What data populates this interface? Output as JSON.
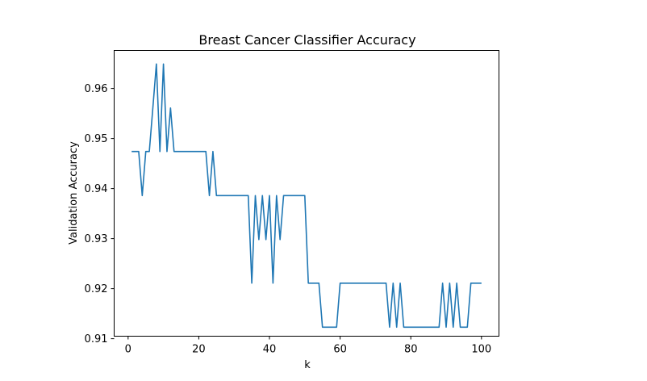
{
  "chart_data": {
    "type": "line",
    "title": "Breast Cancer Classifier Accuracy",
    "xlabel": "k",
    "ylabel": "Validation Accuracy",
    "xlim": [
      -3.95,
      104.95
    ],
    "ylim": [
      0.9105,
      0.9676
    ],
    "xticks": [
      0,
      20,
      40,
      60,
      80,
      100
    ],
    "xtick_labels": [
      "0",
      "20",
      "40",
      "60",
      "80",
      "100"
    ],
    "yticks": [
      0.91,
      0.92,
      0.93,
      0.94,
      0.95,
      0.96
    ],
    "ytick_labels": [
      "0.91",
      "0.92",
      "0.93",
      "0.94",
      "0.95",
      "0.96"
    ],
    "grid": false,
    "colors": {
      "series": "#1f77b4"
    },
    "series": [
      {
        "x": [
          1,
          2,
          3,
          4,
          5,
          6,
          7,
          8,
          9,
          10,
          11,
          12,
          13,
          14,
          15,
          16,
          17,
          18,
          19,
          20,
          21,
          22,
          23,
          24,
          25,
          26,
          27,
          28,
          29,
          30,
          31,
          32,
          33,
          34,
          35,
          36,
          37,
          38,
          39,
          40,
          41,
          42,
          43,
          44,
          45,
          46,
          47,
          48,
          49,
          50,
          51,
          52,
          53,
          54,
          55,
          56,
          57,
          58,
          59,
          60,
          61,
          62,
          63,
          64,
          65,
          66,
          67,
          68,
          69,
          70,
          71,
          72,
          73,
          74,
          75,
          76,
          77,
          78,
          79,
          80,
          81,
          82,
          83,
          84,
          85,
          86,
          87,
          88,
          89,
          90,
          91,
          92,
          93,
          94,
          95,
          96,
          97,
          98,
          99,
          100
        ],
        "values": [
          0.9474,
          0.9474,
          0.9474,
          0.9386,
          0.9474,
          0.9474,
          0.9561,
          0.9649,
          0.9474,
          0.9649,
          0.9474,
          0.9561,
          0.9474,
          0.9474,
          0.9474,
          0.9474,
          0.9474,
          0.9474,
          0.9474,
          0.9474,
          0.9474,
          0.9474,
          0.9386,
          0.9474,
          0.9386,
          0.9386,
          0.9386,
          0.9386,
          0.9386,
          0.9386,
          0.9386,
          0.9386,
          0.9386,
          0.9386,
          0.9211,
          0.9386,
          0.9298,
          0.9386,
          0.9298,
          0.9386,
          0.9211,
          0.9386,
          0.9298,
          0.9386,
          0.9386,
          0.9386,
          0.9386,
          0.9386,
          0.9386,
          0.9386,
          0.9211,
          0.9211,
          0.9211,
          0.9211,
          0.9123,
          0.9123,
          0.9123,
          0.9123,
          0.9123,
          0.9211,
          0.9211,
          0.9211,
          0.9211,
          0.9211,
          0.9211,
          0.9211,
          0.9211,
          0.9211,
          0.9211,
          0.9211,
          0.9211,
          0.9211,
          0.9211,
          0.9123,
          0.9211,
          0.9123,
          0.9211,
          0.9123,
          0.9123,
          0.9123,
          0.9123,
          0.9123,
          0.9123,
          0.9123,
          0.9123,
          0.9123,
          0.9123,
          0.9123,
          0.9211,
          0.9123,
          0.9211,
          0.9123,
          0.9211,
          0.9123,
          0.9123,
          0.9123,
          0.9211,
          0.9211,
          0.9211,
          0.9211
        ]
      }
    ]
  }
}
